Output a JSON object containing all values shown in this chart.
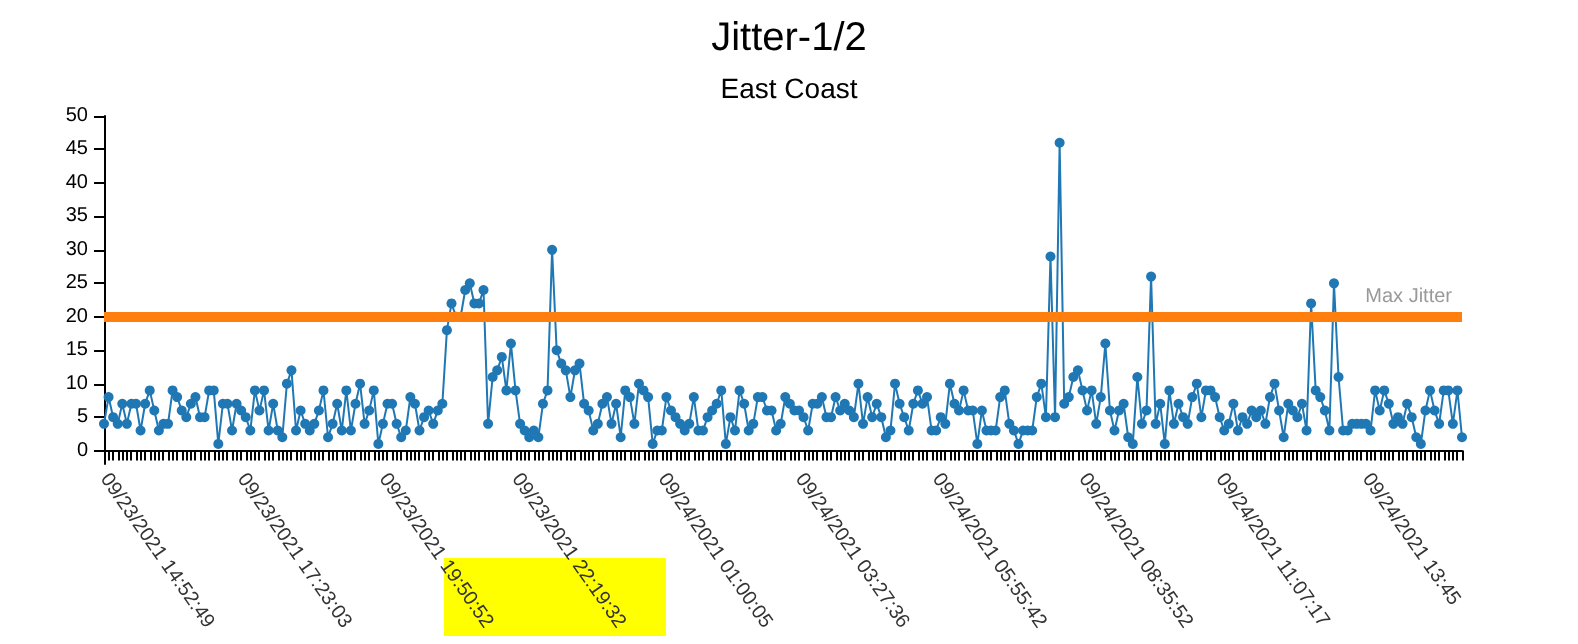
{
  "chart_data": {
    "type": "line",
    "title": "Jitter-1/2",
    "subtitle": "East Coast",
    "categories": [
      "09/23/2021 14:52:49",
      null,
      null,
      null,
      null,
      null,
      null,
      null,
      null,
      null,
      null,
      null,
      null,
      null,
      null,
      null,
      null,
      null,
      null,
      null,
      null,
      null,
      null,
      null,
      null,
      null,
      null,
      null,
      null,
      null,
      "09/23/2021 17:23:03",
      null,
      null,
      null,
      null,
      null,
      null,
      null,
      null,
      null,
      null,
      null,
      null,
      null,
      null,
      null,
      null,
      null,
      null,
      null,
      null,
      null,
      null,
      null,
      null,
      null,
      null,
      null,
      null,
      null,
      null,
      "09/23/2021 19:50:52",
      null,
      null,
      null,
      null,
      null,
      null,
      null,
      null,
      null,
      null,
      null,
      null,
      null,
      null,
      null,
      null,
      null,
      null,
      null,
      null,
      null,
      null,
      null,
      null,
      null,
      null,
      null,
      null,
      "09/23/2021 22:19:32",
      null,
      null,
      null,
      null,
      null,
      null,
      null,
      null,
      null,
      null,
      null,
      null,
      null,
      null,
      null,
      null,
      null,
      null,
      null,
      null,
      null,
      null,
      null,
      null,
      null,
      null,
      null,
      null,
      null,
      null,
      null,
      "09/24/2021 01:00:05",
      null,
      null,
      null,
      null,
      null,
      null,
      null,
      null,
      null,
      null,
      null,
      null,
      null,
      null,
      null,
      null,
      null,
      null,
      null,
      null,
      null,
      null,
      null,
      null,
      null,
      null,
      null,
      null,
      null,
      "09/24/2021 03:27:36",
      null,
      null,
      null,
      null,
      null,
      null,
      null,
      null,
      null,
      null,
      null,
      null,
      null,
      null,
      null,
      null,
      null,
      null,
      null,
      null,
      null,
      null,
      null,
      null,
      null,
      null,
      null,
      null,
      null,
      "09/24/2021 05:55:42",
      null,
      null,
      null,
      null,
      null,
      null,
      null,
      null,
      null,
      null,
      null,
      null,
      null,
      null,
      null,
      null,
      null,
      null,
      null,
      null,
      null,
      null,
      null,
      null,
      null,
      null,
      null,
      null,
      null,
      null,
      null,
      "09/24/2021 08:35:52",
      null,
      null,
      null,
      null,
      null,
      null,
      null,
      null,
      null,
      null,
      null,
      null,
      null,
      null,
      null,
      null,
      null,
      null,
      null,
      null,
      null,
      null,
      null,
      null,
      null,
      null,
      null,
      null,
      null,
      "09/24/2021 11:07:17",
      null,
      null,
      null,
      null,
      null,
      null,
      null,
      null,
      null,
      null,
      null,
      null,
      null,
      null,
      null,
      null,
      null,
      null,
      null,
      null,
      null,
      null,
      null,
      null,
      null,
      null,
      null,
      null,
      null,
      null,
      null,
      "09/24/2021 13:45",
      null,
      null,
      null,
      null,
      null,
      null,
      null,
      null,
      null,
      null,
      null,
      null,
      null,
      null,
      null,
      null,
      null,
      null,
      null,
      null,
      null
    ],
    "values": [
      4,
      8,
      5,
      4,
      7,
      4,
      7,
      7,
      3,
      7,
      9,
      6,
      3,
      4,
      4,
      9,
      8,
      6,
      5,
      7,
      8,
      5,
      5,
      9,
      9,
      1,
      7,
      7,
      3,
      7,
      6,
      5,
      3,
      9,
      6,
      9,
      3,
      7,
      3,
      2,
      10,
      12,
      3,
      6,
      4,
      3,
      4,
      6,
      9,
      2,
      4,
      7,
      3,
      9,
      3,
      7,
      10,
      4,
      6,
      9,
      1,
      4,
      7,
      7,
      4,
      2,
      3,
      8,
      7,
      3,
      5,
      6,
      4,
      6,
      7,
      18,
      22,
      20,
      20,
      24,
      25,
      22,
      22,
      24,
      4,
      11,
      12,
      14,
      9,
      16,
      9,
      4,
      3,
      2,
      3,
      2,
      7,
      9,
      30,
      15,
      13,
      12,
      8,
      12,
      13,
      7,
      6,
      3,
      4,
      7,
      8,
      4,
      7,
      2,
      9,
      8,
      4,
      10,
      9,
      8,
      1,
      3,
      3,
      8,
      6,
      5,
      4,
      3,
      4,
      8,
      3,
      3,
      5,
      6,
      7,
      9,
      1,
      5,
      3,
      9,
      7,
      3,
      4,
      8,
      8,
      6,
      6,
      3,
      4,
      8,
      7,
      6,
      6,
      5,
      3,
      7,
      7,
      8,
      5,
      5,
      8,
      6,
      7,
      6,
      5,
      10,
      4,
      8,
      5,
      7,
      5,
      2,
      3,
      10,
      7,
      5,
      3,
      7,
      9,
      7,
      8,
      3,
      3,
      5,
      4,
      10,
      7,
      6,
      9,
      6,
      6,
      1,
      6,
      3,
      3,
      3,
      8,
      9,
      4,
      3,
      1,
      3,
      3,
      3,
      8,
      10,
      5,
      29,
      5,
      46,
      7,
      8,
      11,
      12,
      9,
      6,
      9,
      4,
      8,
      16,
      6,
      3,
      6,
      7,
      2,
      1,
      11,
      4,
      6,
      26,
      4,
      7,
      1,
      9,
      4,
      7,
      5,
      4,
      8,
      10,
      5,
      9,
      9,
      8,
      5,
      3,
      4,
      7,
      3,
      5,
      4,
      6,
      5,
      6,
      4,
      8,
      10,
      6,
      2,
      7,
      6,
      5,
      7,
      3,
      22,
      9,
      8,
      6,
      3,
      25,
      11,
      3,
      3,
      4,
      4,
      4,
      4,
      3,
      9,
      6,
      9,
      7,
      4,
      5,
      4,
      7,
      5,
      2,
      1,
      6,
      9,
      6,
      4,
      9,
      9,
      4,
      9,
      2
    ],
    "color": "#1f77b4",
    "marker": "circle",
    "ylim": [
      -2,
      50
    ],
    "yticks": [
      0,
      5,
      10,
      15,
      20,
      25,
      30,
      35,
      40,
      45,
      50
    ],
    "ref_lines": [
      {
        "axis": "y",
        "value": 20,
        "label": "Max Jitter",
        "color": "#ff7f0e"
      }
    ]
  }
}
